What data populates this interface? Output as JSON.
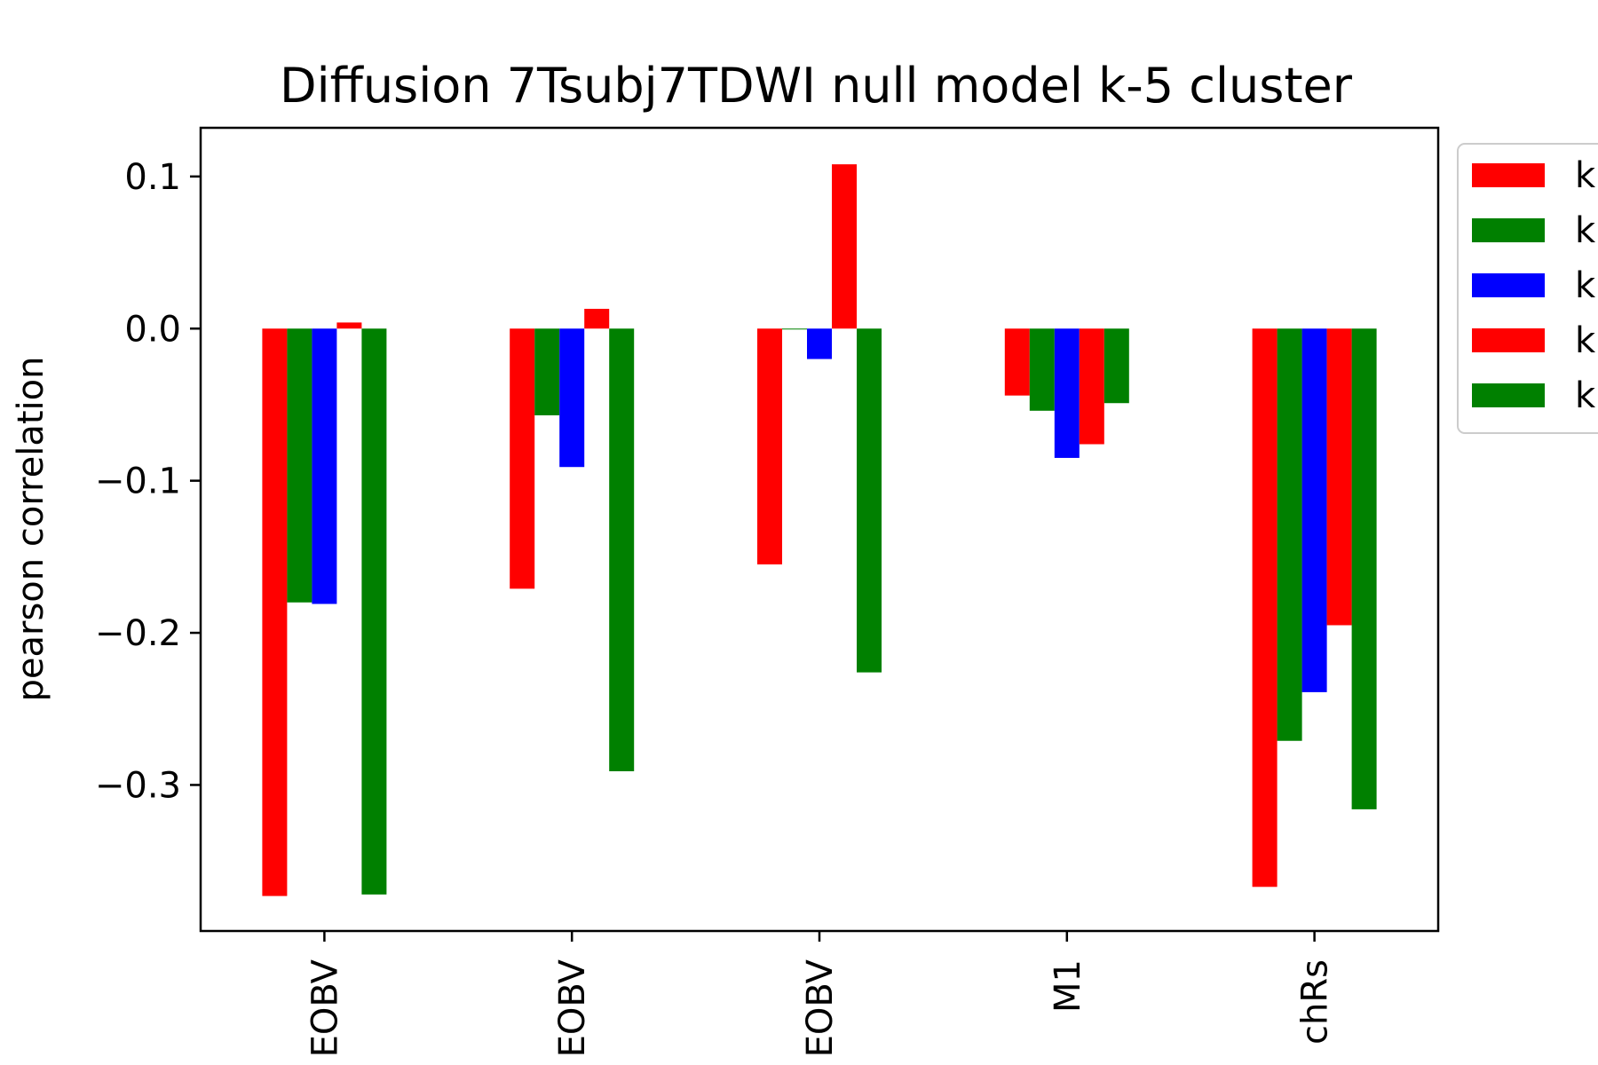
{
  "chart_data": {
    "type": "bar",
    "title": "Diffusion 7Tsubj7TDWI null model k-5 cluster",
    "xlabel": "",
    "ylabel": "pearson correlation",
    "ylim": [
      -0.396,
      0.132
    ],
    "yticks": [
      0.1,
      0.0,
      -0.1,
      -0.2,
      -0.3
    ],
    "ytick_labels": [
      "0.1",
      "0.0",
      "−0.1",
      "−0.2",
      "−0.3"
    ],
    "categories": [
      "EOBV",
      "EOBV",
      "EOBV",
      "M1",
      "chRs"
    ],
    "series": [
      {
        "legend_label": "k",
        "color": "#ff0000",
        "values": [
          -0.373,
          -0.171,
          -0.155,
          -0.044,
          -0.367
        ]
      },
      {
        "legend_label": "k",
        "color": "#008000",
        "values": [
          -0.18,
          -0.057,
          0.0,
          -0.054,
          -0.271
        ]
      },
      {
        "legend_label": "k",
        "color": "#0000ff",
        "values": [
          -0.181,
          -0.091,
          -0.02,
          -0.085,
          -0.239
        ]
      },
      {
        "legend_label": "k",
        "color": "#ff0000",
        "values": [
          0.004,
          0.013,
          0.108,
          -0.076,
          -0.195
        ]
      },
      {
        "legend_label": "k",
        "color": "#008000",
        "values": [
          -0.372,
          -0.291,
          -0.226,
          -0.049,
          -0.316
        ]
      }
    ],
    "grid": false,
    "legend_position": "upper-right-outside"
  }
}
